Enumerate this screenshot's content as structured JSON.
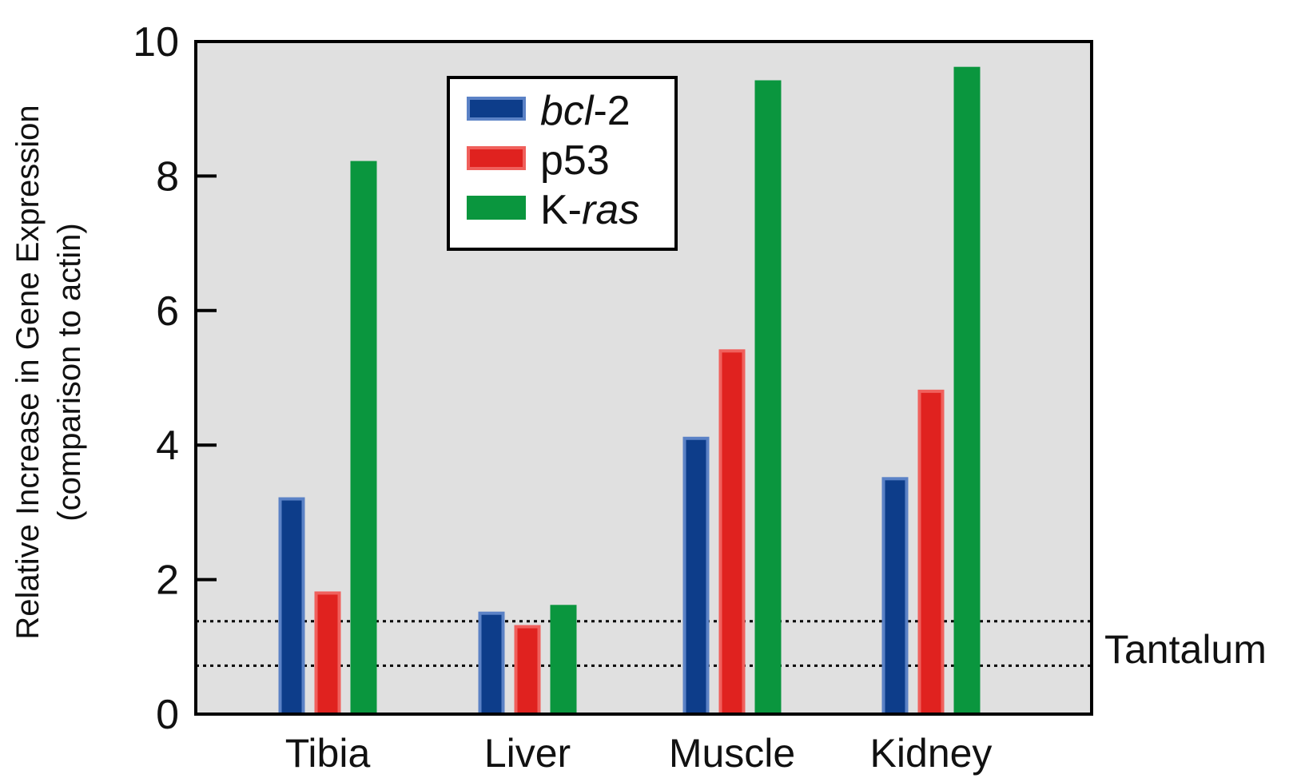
{
  "chart_data": {
    "type": "bar",
    "categories": [
      "Tibia",
      "Liver",
      "Muscle",
      "Kidney"
    ],
    "series": [
      {
        "name_prefix": "",
        "name_italic": "bcl",
        "name_suffix": "-2",
        "name": "bcl-2",
        "color": "#0d3d8a",
        "edge": "#5b82c6",
        "values": [
          3.2,
          1.5,
          4.1,
          3.5
        ]
      },
      {
        "name_prefix": "p53",
        "name_italic": "",
        "name_suffix": "",
        "name": "p53",
        "color": "#e0221f",
        "edge": "#f0605c",
        "values": [
          1.8,
          1.3,
          5.4,
          4.8
        ]
      },
      {
        "name_prefix": "K-",
        "name_italic": "ras",
        "name_suffix": "",
        "name": "K-ras",
        "color": "#0a963e",
        "edge": "#0a963e",
        "values": [
          8.2,
          1.6,
          9.4,
          9.6
        ]
      }
    ],
    "ylabel_line1": "Relative Increase in Gene Expression",
    "ylabel_line2": "(comparison to actin)",
    "ylim": [
      0,
      10
    ],
    "yticks": [
      "0",
      "2",
      "4",
      "6",
      "8",
      "10"
    ],
    "reference_band": {
      "label": "Tantalum",
      "lower": 0.72,
      "upper": 1.38
    },
    "legend_position": "top-center",
    "plot_background": "#e0e0e0"
  }
}
